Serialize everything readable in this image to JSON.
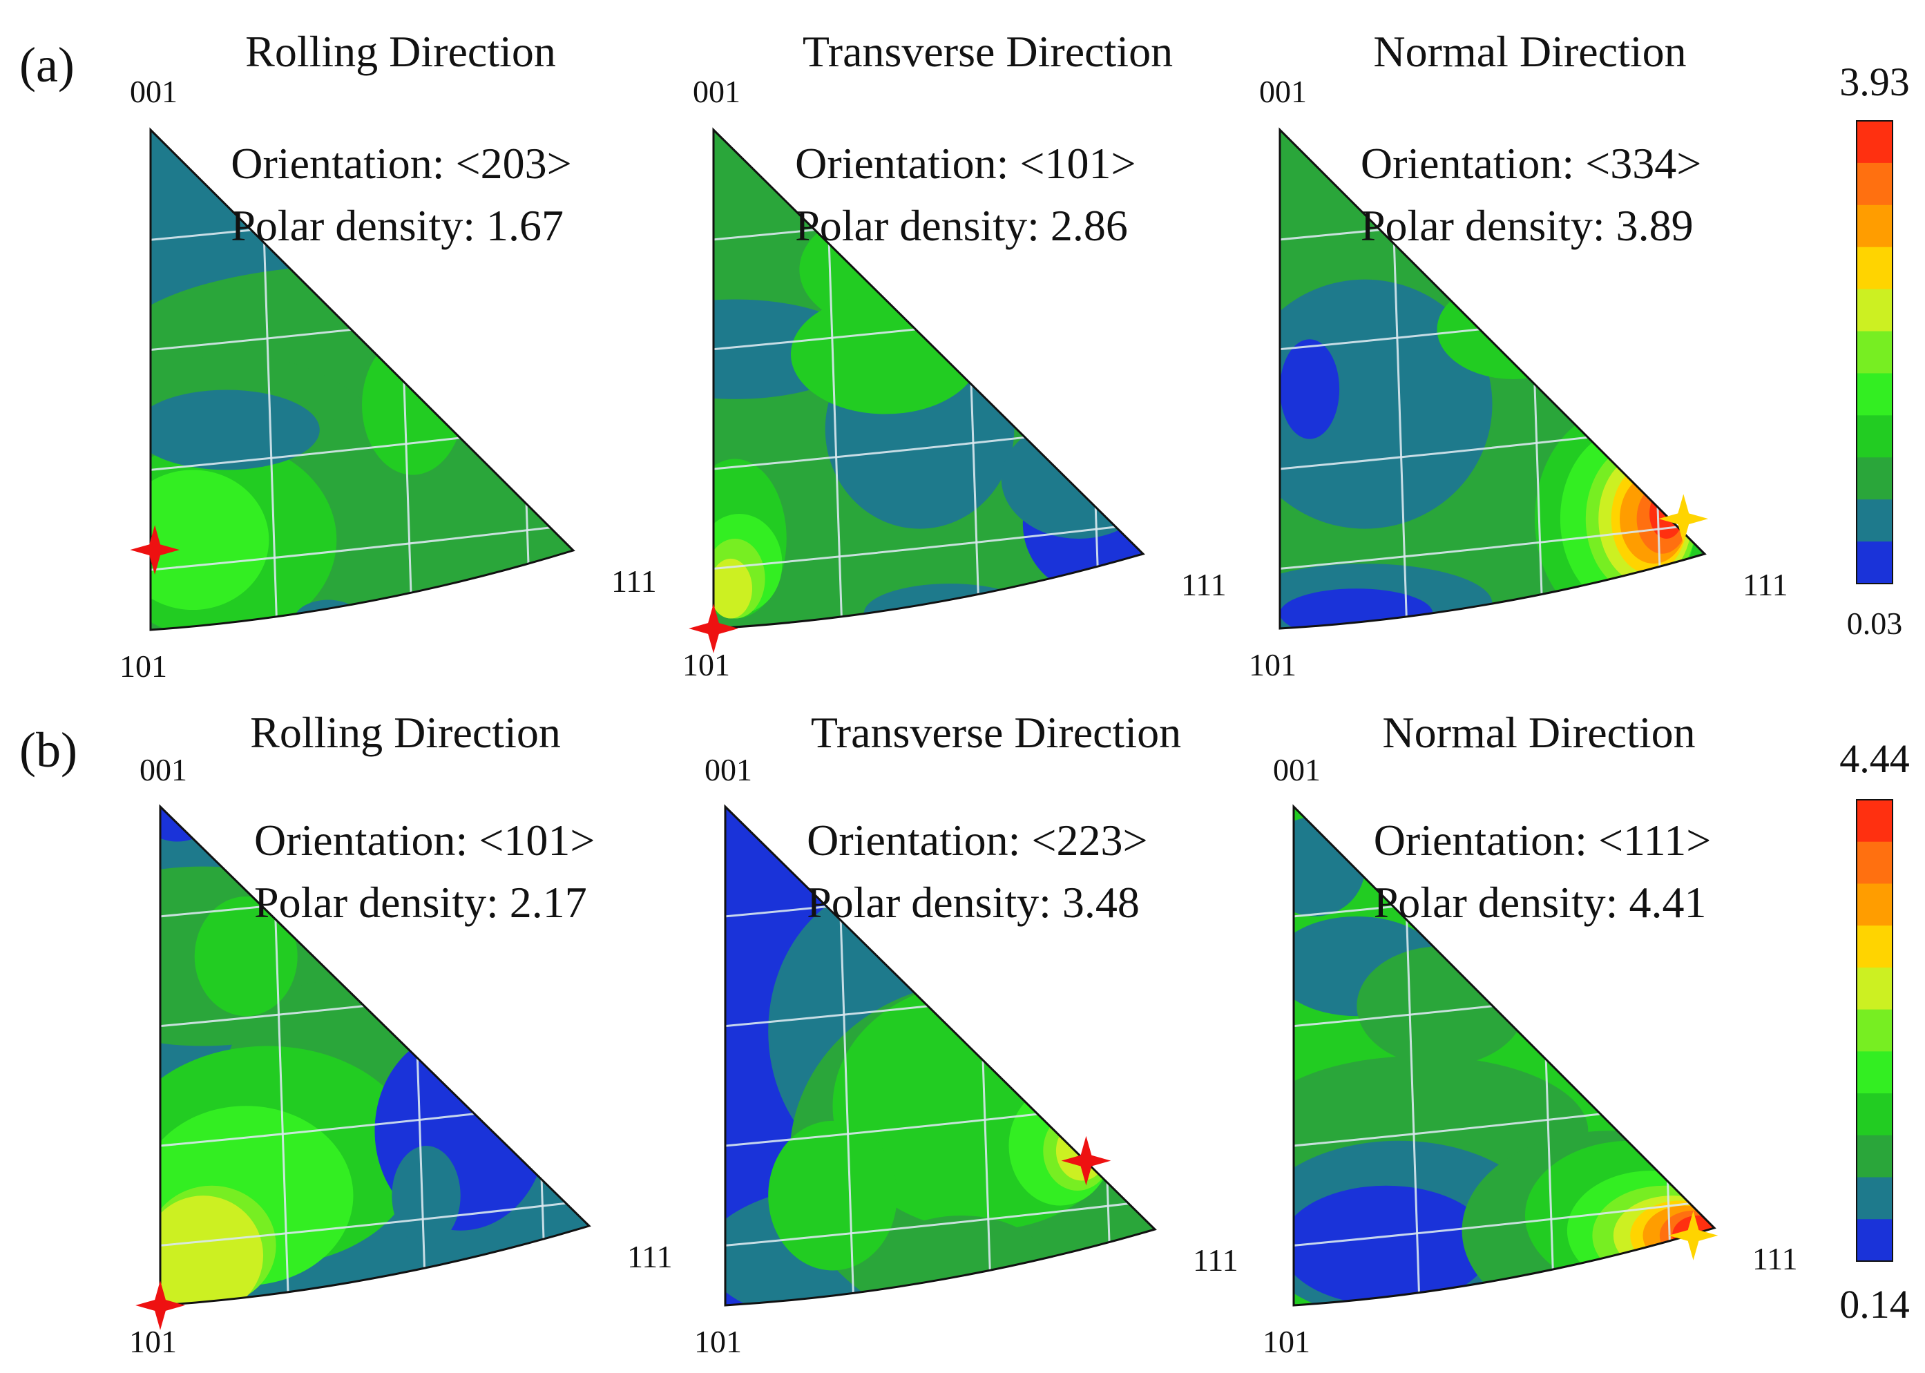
{
  "chart_data": {
    "type": "heatmap",
    "description": "Inverse pole figures (IPF) for two samples in three sample directions",
    "panels": [
      {
        "label": "(a)",
        "colorbar": {
          "max": "3.93",
          "min": "0.03",
          "vmax": 3.93,
          "vmin": 0.03
        },
        "figures": [
          {
            "title": "Rolling Direction",
            "orientation_text": "Orientation: <203>",
            "density_text": "Polar density: 1.67",
            "poles": [
              "001",
              "101",
              "111"
            ],
            "peak_density": 1.67,
            "marker": "red"
          },
          {
            "title": "Transverse Direction",
            "orientation_text": "Orientation: <101>",
            "density_text": "Polar density: 2.86",
            "poles": [
              "001",
              "101",
              "111"
            ],
            "peak_density": 2.86,
            "marker": "red"
          },
          {
            "title": "Normal Direction",
            "orientation_text": "Orientation: <334>",
            "density_text": "Polar density: 3.89",
            "poles": [
              "001",
              "101",
              "111"
            ],
            "peak_density": 3.89,
            "marker": "yellow"
          }
        ]
      },
      {
        "label": "(b)",
        "colorbar": {
          "max": "4.44",
          "min": "0.14",
          "vmax": 4.44,
          "vmin": 0.14
        },
        "figures": [
          {
            "title": "Rolling Direction",
            "orientation_text": "Orientation: <101>",
            "density_text": "Polar density: 2.17",
            "poles": [
              "001",
              "101",
              "111"
            ],
            "peak_density": 2.17,
            "marker": "red"
          },
          {
            "title": "Transverse Direction",
            "orientation_text": "Orientation: <223>",
            "density_text": "Polar density: 3.48",
            "poles": [
              "001",
              "101",
              "111"
            ],
            "peak_density": 3.48,
            "marker": "red"
          },
          {
            "title": "Normal Direction",
            "orientation_text": "Orientation: <111>",
            "density_text": "Polar density: 4.41",
            "poles": [
              "001",
              "101",
              "111"
            ],
            "peak_density": 4.41,
            "marker": "yellow"
          }
        ]
      }
    ],
    "colorbar_colors": [
      "#1a33d9",
      "#1e7a8c",
      "#2aa63a",
      "#22cc22",
      "#33ee22",
      "#77ee22",
      "#ccf022",
      "#ffd400",
      "#ff9d00",
      "#ff7010",
      "#ff3010"
    ]
  },
  "colors": {
    "dark_blue": "#1a33d9",
    "teal": "#1e7a8c",
    "mid_green": "#2aa63a",
    "green": "#22cc22",
    "bright_green": "#33ee22",
    "light_green": "#77ee22",
    "yellow_green": "#ccf022",
    "yellow": "#ffd400",
    "orange": "#ff9d00",
    "red_orange": "#ff7010",
    "red": "#ff3010",
    "marker_red": "#ee1111",
    "marker_yellow": "#ffd400"
  }
}
